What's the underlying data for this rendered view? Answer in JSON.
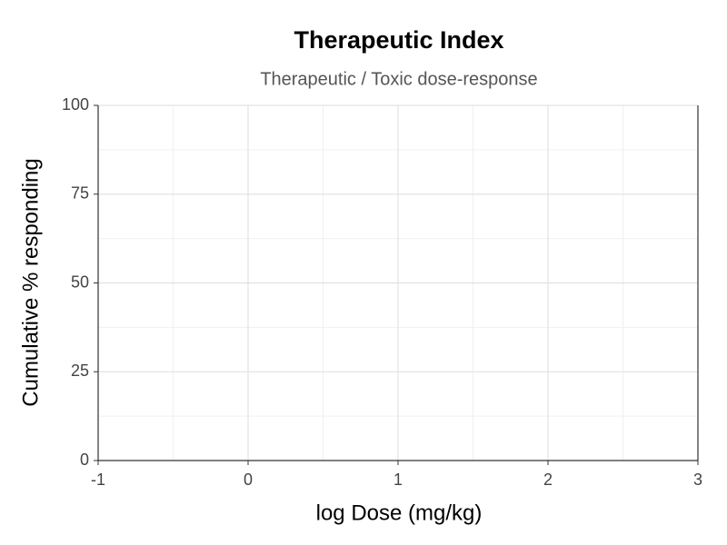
{
  "chart_data": {
    "type": "line",
    "title": "Therapeutic Index",
    "subtitle": "Therapeutic / Toxic dose-response",
    "x_label": "log Dose (mg/kg)",
    "y_label": "Cumulative % responding",
    "xlim": [
      -1,
      3
    ],
    "xticks": [
      -1,
      0,
      1,
      2,
      3
    ],
    "ylim": [
      0,
      100
    ],
    "yticks": [
      0,
      25,
      50,
      75,
      100
    ],
    "grid": true
  }
}
